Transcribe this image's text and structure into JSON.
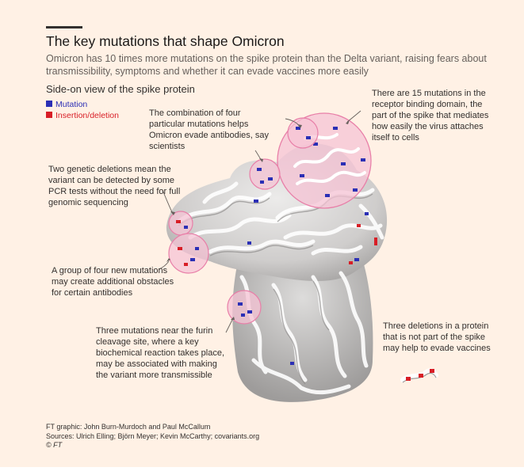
{
  "header": {
    "title": "The key mutations that shape Omicron",
    "subtitle": "Omicron has 10 times more mutations on the spike protein than the Delta variant, raising fears about transmissibility, symptoms and whether it can evade vaccines more easily",
    "section": "Side-on view of the spike protein"
  },
  "legend": [
    {
      "label": "Mutation",
      "color": "#2b2fb5"
    },
    {
      "label": "Insertion/deletion",
      "color": "#d81e26"
    }
  ],
  "annotations": {
    "receptor": "There are 15 mutations in the receptor binding domain, the part of the spike that mediates how easily the virus attaches itself to cells",
    "four_mutations": "The combination of four particular mutations helps Omicron evade antibodies, say scientists",
    "deletions": "Two genetic deletions mean the variant can be detected by some PCR tests without the need for full genomic sequencing",
    "group_four": "A group of four new mutations may create additional obstacles for certain antibodies",
    "furin": "Three mutations near the furin cleavage site, where a key biochemical reaction takes place, may be associated with making the variant more transmissible",
    "three_deletions": "Three deletions in a protein that is not part of the spike may help to evade vaccines"
  },
  "footer": {
    "credit": "FT graphic: John Burn-Murdoch and Paul McCallum",
    "sources": "Sources: Ulrich Elling; Björn Meyer; Kevin McCarthy; covariants.org",
    "copyright": "© FT"
  },
  "colors": {
    "background": "#fff1e5",
    "highlight": "#e87fa8",
    "highlight_fill": "#f6c3d4",
    "protein": "#d9d7d6"
  }
}
